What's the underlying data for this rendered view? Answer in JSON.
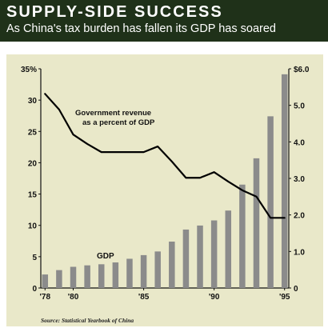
{
  "header": {
    "title": "SUPPLY-SIDE SUCCESS",
    "subtitle": "As China's tax burden has fallen its GDP has soared"
  },
  "source": "Source: Statistical Yearbook of China",
  "colors": {
    "header_bg": "#1f3119",
    "panel_bg": "#e9e8c9",
    "bar": "#8b8b8b",
    "line": "#000000"
  },
  "chart_data": {
    "type": "bar+line",
    "x_tick_labels": [
      "'78",
      "'80",
      "'85",
      "'90",
      "'95"
    ],
    "left_axis": {
      "ticks": [
        "35%",
        "30",
        "25",
        "20",
        "15",
        "10",
        "5",
        "0"
      ],
      "range": [
        0,
        35
      ]
    },
    "right_axis": {
      "ticks": [
        "$6.0",
        "5.0",
        "4.0",
        "3.0",
        "2.0",
        "1.0",
        "0"
      ],
      "range": [
        0,
        6
      ]
    },
    "series": [
      {
        "name": "GDP",
        "type": "bar",
        "axis": "right",
        "x": [
          1978,
          1979,
          1980,
          1981,
          1982,
          1983,
          1984,
          1985,
          1986,
          1987,
          1988,
          1989,
          1990,
          1991,
          1992,
          1993,
          1994,
          1995
        ],
        "values": [
          0.37,
          0.49,
          0.58,
          0.62,
          0.65,
          0.7,
          0.8,
          0.9,
          1.0,
          1.27,
          1.6,
          1.71,
          1.85,
          2.12,
          2.83,
          3.55,
          4.7,
          5.85
        ]
      },
      {
        "name": "Government revenue as a percent of GDP",
        "type": "line",
        "axis": "left",
        "x": [
          1978,
          1979,
          1980,
          1981,
          1982,
          1983,
          1984,
          1985,
          1986,
          1987,
          1988,
          1989,
          1990,
          1991,
          1992,
          1993,
          1994,
          1995
        ],
        "values": [
          31,
          28.5,
          24.5,
          23,
          21.7,
          21.7,
          21.7,
          21.7,
          22.6,
          20.2,
          17.6,
          17.6,
          18.5,
          17,
          15.6,
          14.6,
          11.2,
          11.2
        ]
      }
    ],
    "annotations": {
      "line_label": [
        "Government revenue",
        "as a percent of GDP"
      ],
      "bar_label": "GDP"
    },
    "grid": false
  }
}
